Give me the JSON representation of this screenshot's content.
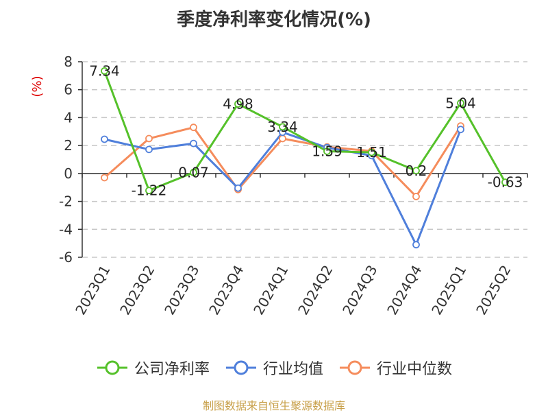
{
  "colors": {
    "company": "#55c12a",
    "industry_avg": "#4f7fdb",
    "industry_median": "#f58c5c",
    "unit": "#dd0000",
    "source": "#c8a04a",
    "grid": "#c8c8c8",
    "axis": "#333333"
  },
  "source": "制图数据来自恒生聚源数据库",
  "chart_data": {
    "type": "line",
    "title": "季度净利率变化情况(%)",
    "ylabel": "(%)",
    "ylim": [
      -6,
      8
    ],
    "yticks": [
      8,
      6,
      4,
      2,
      0,
      -2,
      -4,
      -6
    ],
    "grid": "horizontal-dashed",
    "legend_position": "bottom",
    "categories": [
      "2023Q1",
      "2023Q2",
      "2023Q3",
      "2023Q4",
      "2024Q1",
      "2024Q2",
      "2024Q3",
      "2024Q4",
      "2025Q1",
      "2025Q2"
    ],
    "series": [
      {
        "name": "公司净利率",
        "values": [
          7.34,
          -1.22,
          0.07,
          4.98,
          3.34,
          1.59,
          1.51,
          0.2,
          5.04,
          -0.63
        ],
        "labels": [
          "7.34",
          "-1.22",
          "0.07",
          "4.98",
          "3.34",
          "1.59",
          "1.51",
          "0.2",
          "5.04",
          "-0.63"
        ]
      },
      {
        "name": "行业均值",
        "values": [
          2.45,
          1.72,
          2.15,
          -1.05,
          2.95,
          1.85,
          1.28,
          -5.1,
          3.15,
          null
        ]
      },
      {
        "name": "行业中位数",
        "values": [
          -0.3,
          2.5,
          3.3,
          -1.15,
          2.5,
          1.9,
          1.6,
          -1.65,
          3.4,
          null
        ]
      }
    ]
  }
}
